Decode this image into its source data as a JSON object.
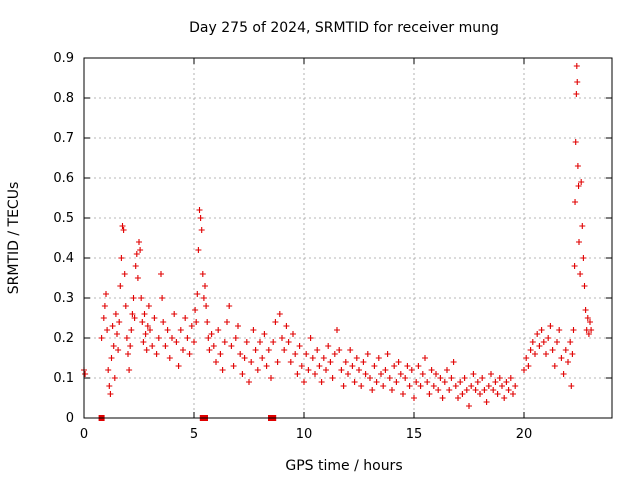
{
  "chart_data": {
    "type": "scatter",
    "title": "Day 275 of 2024, SRMTID for receiver mung",
    "xlabel": "GPS time / hours",
    "ylabel": "SRMTID / TECUs",
    "xlim": [
      0,
      24
    ],
    "ylim": [
      0,
      0.9
    ],
    "xticks": [
      0,
      5,
      10,
      15,
      20
    ],
    "yticks": [
      0,
      0.1,
      0.2,
      0.3,
      0.4,
      0.5,
      0.6,
      0.7,
      0.8,
      0.9
    ],
    "grid": true,
    "marker": "+",
    "color": "#e00000",
    "series": [
      {
        "name": "SRMTID",
        "points": [
          [
            0.0,
            0.12
          ],
          [
            0.05,
            0.11
          ],
          [
            0.8,
            0.2
          ],
          [
            0.9,
            0.25
          ],
          [
            0.95,
            0.28
          ],
          [
            1.0,
            0.31
          ],
          [
            1.05,
            0.22
          ],
          [
            1.1,
            0.12
          ],
          [
            1.15,
            0.08
          ],
          [
            1.2,
            0.06
          ],
          [
            1.25,
            0.15
          ],
          [
            1.3,
            0.23
          ],
          [
            1.35,
            0.18
          ],
          [
            1.4,
            0.1
          ],
          [
            1.45,
            0.26
          ],
          [
            1.5,
            0.21
          ],
          [
            1.55,
            0.17
          ],
          [
            1.6,
            0.24
          ],
          [
            1.65,
            0.33
          ],
          [
            1.7,
            0.4
          ],
          [
            1.75,
            0.48
          ],
          [
            1.8,
            0.47
          ],
          [
            1.85,
            0.36
          ],
          [
            1.9,
            0.28
          ],
          [
            1.95,
            0.2
          ],
          [
            2.0,
            0.16
          ],
          [
            2.05,
            0.12
          ],
          [
            2.1,
            0.18
          ],
          [
            2.15,
            0.22
          ],
          [
            2.2,
            0.26
          ],
          [
            2.25,
            0.3
          ],
          [
            2.3,
            0.25
          ],
          [
            2.35,
            0.38
          ],
          [
            2.4,
            0.41
          ],
          [
            2.45,
            0.35
          ],
          [
            2.5,
            0.44
          ],
          [
            2.55,
            0.42
          ],
          [
            2.6,
            0.3
          ],
          [
            2.65,
            0.24
          ],
          [
            2.7,
            0.19
          ],
          [
            2.75,
            0.26
          ],
          [
            2.8,
            0.21
          ],
          [
            2.85,
            0.17
          ],
          [
            2.9,
            0.23
          ],
          [
            2.95,
            0.28
          ],
          [
            3.0,
            0.22
          ],
          [
            3.1,
            0.18
          ],
          [
            3.2,
            0.25
          ],
          [
            3.3,
            0.16
          ],
          [
            3.4,
            0.2
          ],
          [
            3.5,
            0.36
          ],
          [
            3.55,
            0.3
          ],
          [
            3.6,
            0.24
          ],
          [
            3.7,
            0.18
          ],
          [
            3.8,
            0.22
          ],
          [
            3.9,
            0.15
          ],
          [
            4.0,
            0.2
          ],
          [
            4.1,
            0.26
          ],
          [
            4.2,
            0.19
          ],
          [
            4.3,
            0.13
          ],
          [
            4.4,
            0.22
          ],
          [
            4.5,
            0.17
          ],
          [
            4.6,
            0.25
          ],
          [
            4.7,
            0.2
          ],
          [
            4.8,
            0.16
          ],
          [
            4.9,
            0.23
          ],
          [
            5.0,
            0.19
          ],
          [
            5.05,
            0.27
          ],
          [
            5.1,
            0.24
          ],
          [
            5.15,
            0.31
          ],
          [
            5.2,
            0.42
          ],
          [
            5.25,
            0.52
          ],
          [
            5.3,
            0.5
          ],
          [
            5.35,
            0.47
          ],
          [
            5.4,
            0.36
          ],
          [
            5.45,
            0.3
          ],
          [
            5.5,
            0.33
          ],
          [
            5.55,
            0.28
          ],
          [
            5.6,
            0.24
          ],
          [
            5.65,
            0.2
          ],
          [
            5.7,
            0.17
          ],
          [
            5.8,
            0.21
          ],
          [
            5.9,
            0.18
          ],
          [
            6.0,
            0.14
          ],
          [
            6.1,
            0.22
          ],
          [
            6.2,
            0.16
          ],
          [
            6.3,
            0.12
          ],
          [
            6.4,
            0.19
          ],
          [
            6.5,
            0.24
          ],
          [
            6.6,
            0.28
          ],
          [
            6.7,
            0.18
          ],
          [
            6.8,
            0.13
          ],
          [
            6.9,
            0.2
          ],
          [
            7.0,
            0.23
          ],
          [
            7.1,
            0.16
          ],
          [
            7.2,
            0.11
          ],
          [
            7.3,
            0.15
          ],
          [
            7.4,
            0.19
          ],
          [
            7.5,
            0.09
          ],
          [
            7.6,
            0.14
          ],
          [
            7.7,
            0.22
          ],
          [
            7.8,
            0.17
          ],
          [
            7.9,
            0.12
          ],
          [
            8.0,
            0.19
          ],
          [
            8.1,
            0.15
          ],
          [
            8.2,
            0.21
          ],
          [
            8.3,
            0.13
          ],
          [
            8.4,
            0.17
          ],
          [
            8.5,
            0.1
          ],
          [
            8.6,
            0.19
          ],
          [
            8.7,
            0.24
          ],
          [
            8.8,
            0.14
          ],
          [
            8.9,
            0.26
          ],
          [
            9.0,
            0.2
          ],
          [
            9.1,
            0.17
          ],
          [
            9.2,
            0.23
          ],
          [
            9.3,
            0.19
          ],
          [
            9.4,
            0.14
          ],
          [
            9.5,
            0.21
          ],
          [
            9.6,
            0.16
          ],
          [
            9.7,
            0.11
          ],
          [
            9.8,
            0.18
          ],
          [
            9.9,
            0.13
          ],
          [
            10.0,
            0.09
          ],
          [
            10.1,
            0.16
          ],
          [
            10.2,
            0.12
          ],
          [
            10.3,
            0.2
          ],
          [
            10.4,
            0.15
          ],
          [
            10.5,
            0.11
          ],
          [
            10.6,
            0.17
          ],
          [
            10.7,
            0.13
          ],
          [
            10.8,
            0.09
          ],
          [
            10.9,
            0.15
          ],
          [
            11.0,
            0.12
          ],
          [
            11.1,
            0.18
          ],
          [
            11.2,
            0.14
          ],
          [
            11.3,
            0.1
          ],
          [
            11.4,
            0.16
          ],
          [
            11.5,
            0.22
          ],
          [
            11.6,
            0.17
          ],
          [
            11.7,
            0.12
          ],
          [
            11.8,
            0.08
          ],
          [
            11.9,
            0.14
          ],
          [
            12.0,
            0.11
          ],
          [
            12.1,
            0.17
          ],
          [
            12.2,
            0.13
          ],
          [
            12.3,
            0.09
          ],
          [
            12.4,
            0.15
          ],
          [
            12.5,
            0.12
          ],
          [
            12.6,
            0.08
          ],
          [
            12.7,
            0.14
          ],
          [
            12.8,
            0.11
          ],
          [
            12.9,
            0.16
          ],
          [
            13.0,
            0.1
          ],
          [
            13.1,
            0.07
          ],
          [
            13.2,
            0.13
          ],
          [
            13.3,
            0.09
          ],
          [
            13.4,
            0.15
          ],
          [
            13.5,
            0.11
          ],
          [
            13.6,
            0.08
          ],
          [
            13.7,
            0.12
          ],
          [
            13.8,
            0.16
          ],
          [
            13.9,
            0.1
          ],
          [
            14.0,
            0.07
          ],
          [
            14.1,
            0.13
          ],
          [
            14.2,
            0.09
          ],
          [
            14.3,
            0.14
          ],
          [
            14.4,
            0.11
          ],
          [
            14.5,
            0.06
          ],
          [
            14.6,
            0.1
          ],
          [
            14.7,
            0.13
          ],
          [
            14.8,
            0.08
          ],
          [
            14.9,
            0.12
          ],
          [
            15.0,
            0.05
          ],
          [
            15.1,
            0.09
          ],
          [
            15.2,
            0.13
          ],
          [
            15.3,
            0.08
          ],
          [
            15.4,
            0.11
          ],
          [
            15.5,
            0.15
          ],
          [
            15.6,
            0.09
          ],
          [
            15.7,
            0.06
          ],
          [
            15.8,
            0.12
          ],
          [
            15.9,
            0.08
          ],
          [
            16.0,
            0.11
          ],
          [
            16.1,
            0.07
          ],
          [
            16.2,
            0.1
          ],
          [
            16.3,
            0.05
          ],
          [
            16.4,
            0.09
          ],
          [
            16.5,
            0.12
          ],
          [
            16.6,
            0.07
          ],
          [
            16.7,
            0.1
          ],
          [
            16.8,
            0.14
          ],
          [
            16.9,
            0.08
          ],
          [
            17.0,
            0.05
          ],
          [
            17.1,
            0.09
          ],
          [
            17.2,
            0.06
          ],
          [
            17.3,
            0.1
          ],
          [
            17.4,
            0.07
          ],
          [
            17.5,
            0.03
          ],
          [
            17.6,
            0.08
          ],
          [
            17.7,
            0.11
          ],
          [
            17.8,
            0.07
          ],
          [
            17.9,
            0.09
          ],
          [
            18.0,
            0.06
          ],
          [
            18.1,
            0.1
          ],
          [
            18.2,
            0.07
          ],
          [
            18.3,
            0.04
          ],
          [
            18.4,
            0.08
          ],
          [
            18.5,
            0.11
          ],
          [
            18.6,
            0.07
          ],
          [
            18.7,
            0.09
          ],
          [
            18.8,
            0.06
          ],
          [
            18.9,
            0.1
          ],
          [
            19.0,
            0.08
          ],
          [
            19.1,
            0.05
          ],
          [
            19.2,
            0.09
          ],
          [
            19.3,
            0.07
          ],
          [
            19.4,
            0.1
          ],
          [
            19.5,
            0.06
          ],
          [
            19.6,
            0.08
          ],
          [
            20.0,
            0.12
          ],
          [
            20.1,
            0.15
          ],
          [
            20.2,
            0.13
          ],
          [
            20.3,
            0.17
          ],
          [
            20.4,
            0.19
          ],
          [
            20.5,
            0.16
          ],
          [
            20.6,
            0.21
          ],
          [
            20.7,
            0.18
          ],
          [
            20.8,
            0.22
          ],
          [
            20.9,
            0.19
          ],
          [
            21.0,
            0.16
          ],
          [
            21.1,
            0.2
          ],
          [
            21.2,
            0.23
          ],
          [
            21.3,
            0.17
          ],
          [
            21.4,
            0.13
          ],
          [
            21.5,
            0.19
          ],
          [
            21.6,
            0.22
          ],
          [
            21.7,
            0.15
          ],
          [
            21.8,
            0.11
          ],
          [
            21.9,
            0.17
          ],
          [
            22.0,
            0.14
          ],
          [
            22.1,
            0.19
          ],
          [
            22.15,
            0.08
          ],
          [
            22.2,
            0.16
          ],
          [
            22.25,
            0.22
          ],
          [
            22.3,
            0.38
          ],
          [
            22.32,
            0.54
          ],
          [
            22.35,
            0.69
          ],
          [
            22.38,
            0.81
          ],
          [
            22.4,
            0.88
          ],
          [
            22.42,
            0.84
          ],
          [
            22.45,
            0.63
          ],
          [
            22.48,
            0.58
          ],
          [
            22.5,
            0.44
          ],
          [
            22.55,
            0.36
          ],
          [
            22.6,
            0.59
          ],
          [
            22.65,
            0.48
          ],
          [
            22.7,
            0.4
          ],
          [
            22.75,
            0.33
          ],
          [
            22.8,
            0.27
          ],
          [
            22.85,
            0.22
          ],
          [
            22.9,
            0.25
          ],
          [
            22.95,
            0.21
          ],
          [
            23.0,
            0.24
          ],
          [
            23.05,
            0.22
          ]
        ]
      }
    ],
    "zero_flags": [
      0.8,
      5.4,
      5.5,
      8.5,
      8.6
    ]
  }
}
